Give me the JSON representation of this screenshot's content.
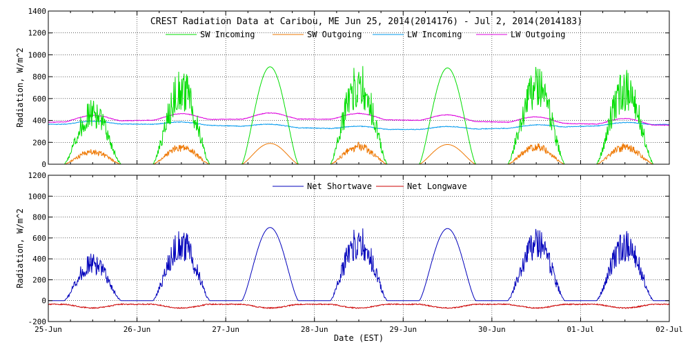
{
  "title": "CREST Radiation Data at Caribou, ME   Jun 25, 2014(2014176) - Jul  2, 2014(2014183)",
  "xlabel": "Date (EST)",
  "colors": {
    "sw_incoming": "#00dd00",
    "sw_outgoing": "#ee7700",
    "lw_incoming": "#0099ee",
    "lw_outgoing": "#dd00dd",
    "net_shortwave": "#0000bb",
    "net_longwave": "#cc0000",
    "grid": "#000000"
  },
  "chart_data": [
    {
      "type": "line",
      "ylabel": "Radiation, W/m^2",
      "ylim": [
        0,
        1400
      ],
      "yticks": [
        "0",
        "200",
        "400",
        "600",
        "800",
        "1000",
        "1200",
        "1400"
      ],
      "xlim_days": [
        0,
        7
      ],
      "x_tick_labels": [
        "25-Jun",
        "26-Jun",
        "27-Jun",
        "28-Jun",
        "29-Jun",
        "30-Jun",
        "01-Jul",
        "02-Jul"
      ],
      "grid": true,
      "legend_position": "top",
      "series": [
        {
          "name": "SW Incoming",
          "key": "sw_incoming",
          "daily_peak": [
            600,
            880,
            890,
            960,
            880,
            920,
            880
          ]
        },
        {
          "name": "SW Outgoing",
          "key": "sw_outgoing",
          "daily_peak": [
            140,
            190,
            190,
            200,
            180,
            195,
            190
          ]
        },
        {
          "name": "LW Incoming",
          "key": "lw_incoming",
          "approx_range": [
            300,
            420
          ]
        },
        {
          "name": "LW Outgoing",
          "key": "lw_outgoing",
          "approx_range": [
            340,
            480
          ]
        }
      ]
    },
    {
      "type": "line",
      "ylabel": "Radiation, W/m^2",
      "ylim": [
        -200,
        1200
      ],
      "yticks": [
        "-200",
        "0",
        "200",
        "400",
        "600",
        "800",
        "1000",
        "1200"
      ],
      "xlim_days": [
        0,
        7
      ],
      "x_tick_labels": [
        "25-Jun",
        "26-Jun",
        "27-Jun",
        "28-Jun",
        "29-Jun",
        "30-Jun",
        "01-Jul",
        "02-Jul"
      ],
      "grid": true,
      "legend_position": "top",
      "series": [
        {
          "name": "Net Shortwave",
          "key": "net_shortwave",
          "daily_peak": [
            460,
            690,
            700,
            740,
            690,
            710,
            680
          ]
        },
        {
          "name": "Net Longwave",
          "key": "net_longwave",
          "approx_range": [
            -90,
            -10
          ]
        }
      ]
    }
  ]
}
